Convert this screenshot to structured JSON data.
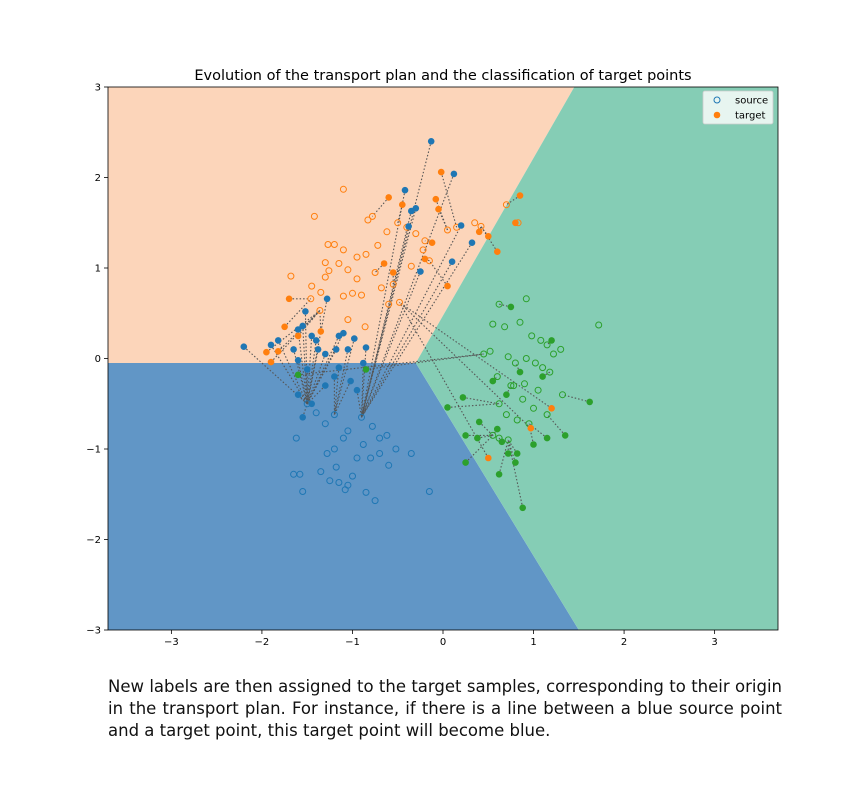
{
  "chart_data": {
    "type": "scatter",
    "title": "Evolution of the transport plan and the classification of target points",
    "xlabel": "",
    "ylabel": "",
    "xlim": [
      -3.7,
      3.7
    ],
    "ylim": [
      -3,
      3
    ],
    "x_ticks": [
      "−3",
      "−2",
      "−1",
      "0",
      "1",
      "2",
      "3"
    ],
    "y_ticks": [
      "−3",
      "−2",
      "−1",
      "0",
      "1",
      "2",
      "3"
    ],
    "grid": false,
    "legend": {
      "position": "top-right",
      "entries": [
        "source",
        "target"
      ]
    },
    "regions": [
      {
        "class": "orange",
        "color": "#fcd5ba",
        "polygon": [
          [
            -3.7,
            -0.05
          ],
          [
            -0.3,
            -0.05
          ],
          [
            1.45,
            3
          ],
          [
            -3.7,
            3
          ]
        ]
      },
      {
        "class": "blue",
        "color": "#6196c6",
        "polygon": [
          [
            -3.7,
            -3
          ],
          [
            -3.7,
            -0.05
          ],
          [
            -0.3,
            -0.05
          ],
          [
            1.5,
            -3
          ]
        ]
      },
      {
        "class": "green",
        "color": "#85cdb5",
        "polygon": [
          [
            -0.3,
            -0.05
          ],
          [
            1.45,
            3
          ],
          [
            3.7,
            3
          ],
          [
            3.7,
            -3
          ],
          [
            1.5,
            -3
          ]
        ]
      }
    ],
    "series": [
      {
        "name": "source",
        "marker": "hollow-circle",
        "groups": [
          {
            "class": "orange",
            "color": "#ff7f0e",
            "points": [
              [
                -1.1,
                1.87
              ],
              [
                -1.42,
                1.57
              ],
              [
                -1.68,
                0.91
              ],
              [
                -1.27,
                1.26
              ],
              [
                -1.2,
                1.26
              ],
              [
                -1.1,
                1.2
              ],
              [
                -1.3,
                1.06
              ],
              [
                -1.26,
                0.97
              ],
              [
                -1.3,
                0.9
              ],
              [
                -1.45,
                0.8
              ],
              [
                -1.35,
                0.73
              ],
              [
                -1.46,
                0.66
              ],
              [
                -1.36,
                0.53
              ],
              [
                -1.1,
                0.69
              ],
              [
                -1.0,
                0.72
              ],
              [
                -0.9,
                0.7
              ],
              [
                -1.05,
                0.43
              ],
              [
                -0.83,
                1.53
              ],
              [
                -0.78,
                1.57
              ],
              [
                -0.95,
                1.12
              ],
              [
                -0.85,
                1.15
              ],
              [
                -0.75,
                0.95
              ],
              [
                -0.68,
                0.78
              ],
              [
                -0.55,
                0.82
              ],
              [
                -0.6,
                0.6
              ],
              [
                -0.48,
                0.62
              ],
              [
                -0.86,
                0.35
              ],
              [
                -0.62,
                1.4
              ],
              [
                -0.5,
                1.5
              ],
              [
                -0.4,
                1.45
              ],
              [
                -0.3,
                1.38
              ],
              [
                -0.2,
                1.3
              ],
              [
                0.05,
                1.42
              ],
              [
                0.15,
                1.45
              ],
              [
                0.35,
                1.5
              ],
              [
                0.42,
                1.46
              ],
              [
                0.83,
                1.5
              ],
              [
                0.7,
                1.7
              ],
              [
                -0.22,
                1.2
              ],
              [
                -0.35,
                1.02
              ],
              [
                -0.15,
                1.08
              ],
              [
                -1.05,
                0.98
              ],
              [
                -0.95,
                0.88
              ],
              [
                -0.72,
                1.25
              ],
              [
                -1.15,
                1.05
              ]
            ]
          },
          {
            "class": "green",
            "color": "#2ca02c",
            "points": [
              [
                0.62,
                0.6
              ],
              [
                0.92,
                0.66
              ],
              [
                1.72,
                0.37
              ],
              [
                0.55,
                0.38
              ],
              [
                0.68,
                0.35
              ],
              [
                0.85,
                0.4
              ],
              [
                0.98,
                0.25
              ],
              [
                1.08,
                0.2
              ],
              [
                1.15,
                0.15
              ],
              [
                1.3,
                0.1
              ],
              [
                1.22,
                0.05
              ],
              [
                0.52,
                0.08
              ],
              [
                0.45,
                0.05
              ],
              [
                0.72,
                0.02
              ],
              [
                0.8,
                -0.05
              ],
              [
                0.92,
                0.0
              ],
              [
                1.02,
                -0.05
              ],
              [
                1.1,
                -0.1
              ],
              [
                1.18,
                -0.15
              ],
              [
                1.32,
                -0.4
              ],
              [
                0.6,
                -0.2
              ],
              [
                0.75,
                -0.3
              ],
              [
                0.9,
                -0.28
              ],
              [
                1.05,
                -0.35
              ],
              [
                0.62,
                -0.5
              ],
              [
                0.7,
                -0.62
              ],
              [
                0.82,
                -0.68
              ],
              [
                0.95,
                -0.72
              ],
              [
                0.55,
                -0.85
              ],
              [
                0.62,
                -0.88
              ],
              [
                0.72,
                -0.9
              ],
              [
                0.78,
                -0.3
              ],
              [
                0.88,
                -0.45
              ],
              [
                1.0,
                -0.55
              ],
              [
                1.15,
                -0.62
              ]
            ]
          },
          {
            "class": "blue",
            "color": "#1f77b4",
            "points": [
              [
                -1.65,
                -1.28
              ],
              [
                -1.58,
                -1.28
              ],
              [
                -1.55,
                -1.47
              ],
              [
                -1.15,
                -1.37
              ],
              [
                -1.08,
                -1.45
              ],
              [
                -1.05,
                -1.4
              ],
              [
                -1.0,
                -1.3
              ],
              [
                -0.85,
                -1.48
              ],
              [
                -0.75,
                -1.57
              ],
              [
                -0.15,
                -1.47
              ],
              [
                -1.62,
                -0.88
              ],
              [
                -1.35,
                -1.25
              ],
              [
                -1.25,
                -1.35
              ],
              [
                -1.18,
                -1.2
              ],
              [
                -1.28,
                -1.05
              ],
              [
                -1.2,
                -1.0
              ],
              [
                -1.1,
                -0.88
              ],
              [
                -1.05,
                -0.8
              ],
              [
                -0.95,
                -1.1
              ],
              [
                -0.88,
                -0.95
              ],
              [
                -0.8,
                -1.1
              ],
              [
                -0.7,
                -1.05
              ],
              [
                -0.6,
                -1.18
              ],
              [
                -0.52,
                -1.0
              ],
              [
                -0.7,
                -0.88
              ],
              [
                -0.78,
                -0.75
              ],
              [
                -0.9,
                -0.65
              ],
              [
                -1.3,
                -0.72
              ],
              [
                -1.2,
                -0.62
              ],
              [
                -1.4,
                -0.6
              ],
              [
                -1.5,
                -0.5
              ],
              [
                -0.35,
                -1.05
              ],
              [
                -0.62,
                -0.85
              ]
            ]
          }
        ]
      },
      {
        "name": "target",
        "marker": "filled-circle",
        "groups": [
          {
            "class": "blue",
            "color": "#1f77b4",
            "points": [
              [
                -0.13,
                2.4
              ],
              [
                0.12,
                2.04
              ],
              [
                -0.42,
                1.86
              ],
              [
                -0.35,
                1.63
              ],
              [
                -0.3,
                1.66
              ],
              [
                -0.38,
                1.46
              ],
              [
                0.2,
                1.47
              ],
              [
                0.32,
                1.28
              ],
              [
                0.1,
                1.07
              ],
              [
                -0.25,
                0.96
              ],
              [
                -2.2,
                0.13
              ],
              [
                -1.9,
                0.15
              ],
              [
                -1.82,
                0.2
              ],
              [
                -1.6,
                0.32
              ],
              [
                -1.55,
                0.36
              ],
              [
                -1.52,
                0.52
              ],
              [
                -1.45,
                0.25
              ],
              [
                -1.4,
                0.2
              ],
              [
                -1.38,
                0.1
              ],
              [
                -1.3,
                0.05
              ],
              [
                -1.28,
                0.66
              ],
              [
                -1.18,
                0.1
              ],
              [
                -1.15,
                0.25
              ],
              [
                -1.1,
                0.28
              ],
              [
                -1.05,
                0.1
              ],
              [
                -0.98,
                0.22
              ],
              [
                -0.85,
                0.12
              ],
              [
                -1.65,
                0.1
              ],
              [
                -1.6,
                -0.02
              ],
              [
                -1.5,
                -0.12
              ],
              [
                -1.6,
                -0.4
              ],
              [
                -1.55,
                -0.65
              ],
              [
                -1.45,
                -0.5
              ],
              [
                -1.3,
                -0.3
              ],
              [
                -1.2,
                -0.2
              ],
              [
                -1.15,
                -0.1
              ],
              [
                -1.02,
                -0.25
              ],
              [
                -0.95,
                -0.35
              ],
              [
                -0.88,
                -0.05
              ]
            ]
          },
          {
            "class": "orange",
            "color": "#ff7f0e",
            "points": [
              [
                -0.02,
                2.06
              ],
              [
                0.85,
                1.8
              ],
              [
                -0.08,
                1.76
              ],
              [
                -0.6,
                1.78
              ],
              [
                -0.45,
                1.7
              ],
              [
                -0.05,
                1.65
              ],
              [
                0.8,
                1.5
              ],
              [
                0.4,
                1.4
              ],
              [
                0.5,
                1.35
              ],
              [
                0.6,
                1.18
              ],
              [
                -0.12,
                1.28
              ],
              [
                -0.2,
                1.1
              ],
              [
                0.05,
                0.8
              ],
              [
                -0.65,
                1.05
              ],
              [
                -0.55,
                0.95
              ],
              [
                -1.7,
                0.66
              ],
              [
                -1.75,
                0.35
              ],
              [
                -1.82,
                0.08
              ],
              [
                -1.95,
                0.07
              ],
              [
                -1.9,
                -0.04
              ],
              [
                -1.6,
                0.25
              ],
              [
                -1.35,
                0.3
              ],
              [
                1.2,
                -0.55
              ],
              [
                0.97,
                -0.77
              ],
              [
                0.5,
                -1.1
              ]
            ]
          },
          {
            "class": "green",
            "color": "#2ca02c",
            "points": [
              [
                0.75,
                0.57
              ],
              [
                1.62,
                -0.48
              ],
              [
                0.05,
                -0.54
              ],
              [
                0.22,
                -0.43
              ],
              [
                0.4,
                -0.7
              ],
              [
                0.25,
                -0.85
              ],
              [
                0.38,
                -0.88
              ],
              [
                0.6,
                -0.78
              ],
              [
                0.65,
                -0.92
              ],
              [
                0.72,
                -1.05
              ],
              [
                0.82,
                -1.05
              ],
              [
                0.8,
                -1.15
              ],
              [
                0.62,
                -1.28
              ],
              [
                0.25,
                -1.15
              ],
              [
                0.88,
                -1.65
              ],
              [
                1.35,
                -0.85
              ],
              [
                1.15,
                -0.88
              ],
              [
                1.0,
                -0.95
              ],
              [
                0.55,
                -0.25
              ],
              [
                0.7,
                -0.4
              ],
              [
                0.85,
                -0.15
              ],
              [
                1.1,
                -0.2
              ],
              [
                1.2,
                0.2
              ],
              [
                -0.85,
                -0.12
              ],
              [
                -1.6,
                -0.18
              ]
            ]
          }
        ]
      }
    ]
  },
  "caption": {
    "text": "New labels are then assigned to the target samples, corresponding to their origin in the transport plan. For instance, if there is a line between a blue source point and a target point, this target point will become blue."
  }
}
